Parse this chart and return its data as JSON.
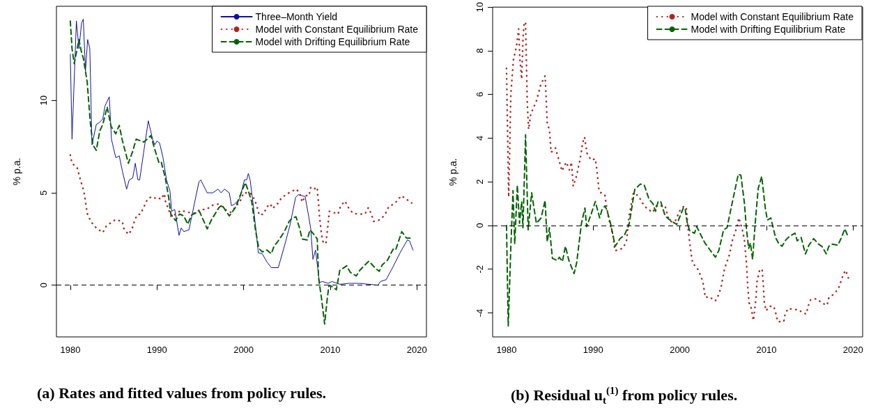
{
  "chart_data": [
    {
      "type": "line",
      "title": "(a) Rates and fitted values from policy rules.",
      "ylabel": "% p.a.",
      "xlim": [
        1978.4,
        2021.1
      ],
      "xticks": [
        1980,
        1990,
        2000,
        2010,
        2020
      ],
      "ylim": [
        -2.8,
        15.1
      ],
      "yticks": [
        0,
        5,
        10
      ],
      "grid": false,
      "legend": "top right",
      "marker": "none",
      "ref_lines": [
        {
          "axis": "y",
          "value": 0,
          "label": null,
          "line_style": "dashed",
          "color": "#000000"
        }
      ],
      "series": [
        {
          "name": "Three–Month Yield",
          "color": "#1010a0",
          "line_style": "solid",
          "x": [
            1980.0,
            1980.2,
            1980.7,
            1981.0,
            1981.3,
            1981.5,
            1981.75,
            1982.0,
            1982.25,
            1982.5,
            1983.0,
            1983.35,
            1983.75,
            1984.0,
            1984.5,
            1984.75,
            1985.25,
            1985.65,
            1986.0,
            1986.5,
            1986.8,
            1987.2,
            1987.5,
            1987.8,
            1988.0,
            1988.5,
            1989.0,
            1989.5,
            1989.75,
            1990.0,
            1990.3,
            1990.7,
            1991.1,
            1991.5,
            1991.7,
            1992.05,
            1992.55,
            1992.8,
            1993.1,
            1993.7,
            1994.4,
            1994.85,
            1995.05,
            1995.8,
            1996.45,
            1997.05,
            1997.4,
            1997.8,
            1998.35,
            1998.6,
            1999.0,
            1999.55,
            2000.1,
            2000.35,
            2000.55,
            2000.75,
            2001.1,
            2001.7,
            2002.15,
            2002.7,
            2003.2,
            2004.0,
            2004.7,
            2005.35,
            2006.0,
            2006.3,
            2007.1,
            2007.5,
            2007.75,
            2008.0,
            2008.3,
            2008.75,
            2009.1,
            2009.75,
            2010.2,
            2011.1,
            2012.2,
            2013.4,
            2014.45,
            2015.5,
            2015.8,
            2016.45,
            2017.25,
            2018.05,
            2018.9,
            2019.15,
            2019.55
          ],
          "values": [
            12.5,
            7.9,
            14.3,
            12.8,
            14.2,
            14.4,
            11.6,
            13.3,
            12.8,
            7.6,
            8.7,
            8.8,
            9.0,
            9.7,
            10.2,
            7.9,
            6.9,
            7.0,
            6.2,
            5.2,
            5.7,
            5.8,
            6.6,
            5.7,
            5.7,
            7.3,
            8.9,
            7.9,
            7.6,
            7.8,
            7.7,
            6.9,
            5.7,
            5.1,
            4.0,
            4.1,
            2.7,
            3.1,
            2.9,
            3.0,
            4.6,
            5.6,
            5.7,
            5.0,
            5.0,
            5.2,
            5.0,
            5.2,
            5.0,
            4.3,
            4.4,
            4.7,
            5.7,
            5.7,
            6.05,
            5.7,
            4.4,
            1.75,
            1.7,
            1.25,
            0.95,
            0.95,
            2.1,
            3.25,
            4.75,
            4.9,
            4.8,
            3.75,
            3.05,
            1.4,
            1.9,
            0.15,
            0.2,
            0.1,
            0.2,
            0.05,
            0.1,
            0.1,
            0.05,
            0.0,
            0.2,
            0.3,
            1.0,
            1.75,
            2.45,
            2.4,
            1.9
          ]
        },
        {
          "name": "Model with Constant Equilibrium Rate",
          "color": "#b22222",
          "line_style": "dotted",
          "x": [
            1980.0,
            1980.2,
            1980.8,
            1981.05,
            1981.3,
            1981.55,
            1981.7,
            1981.85,
            1982.0,
            1982.45,
            1983.0,
            1983.75,
            1984.15,
            1984.75,
            1985.2,
            1986.0,
            1986.2,
            1986.7,
            1987.1,
            1987.35,
            1987.7,
            1988.1,
            1988.5,
            1988.9,
            1989.4,
            1989.85,
            1990.1,
            1990.45,
            1990.85,
            1991.0,
            1991.35,
            1991.65,
            1992.0,
            1992.75,
            1993.55,
            1994.3,
            1995.0,
            1995.7,
            1996.5,
            1997.2,
            1997.85,
            1998.5,
            1999.1,
            1999.65,
            2000.0,
            2000.75,
            2001.25,
            2001.55,
            2001.8,
            2002.3,
            2002.7,
            2003.1,
            2003.35,
            2004.0,
            2004.4,
            2005.4,
            2006.1,
            2006.5,
            2006.75,
            2007.15,
            2007.55,
            2007.75,
            2008.1,
            2008.5,
            2008.55,
            2008.65,
            2008.7,
            2008.8,
            2008.9,
            2009.0,
            2009.2,
            2009.5,
            2009.6,
            2009.7,
            2009.8,
            2009.9,
            2010.3,
            2010.9,
            2011.2,
            2011.7,
            2012.1,
            2012.6,
            2013.2,
            2014.0,
            2014.4,
            2014.75,
            2015.0,
            2015.8,
            2016.35,
            2016.75,
            2017.15,
            2017.7,
            2018.2,
            2018.8,
            2019.4
          ],
          "values": [
            7.05,
            6.6,
            6.35,
            5.9,
            5.5,
            5.1,
            4.7,
            4.2,
            3.8,
            3.4,
            3.1,
            2.85,
            3.2,
            3.4,
            3.55,
            3.45,
            3.05,
            2.75,
            3.0,
            3.4,
            3.8,
            3.85,
            4.25,
            4.65,
            4.8,
            4.7,
            4.75,
            4.65,
            4.95,
            4.5,
            4.1,
            3.7,
            3.8,
            4.05,
            3.95,
            3.9,
            4.1,
            4.1,
            4.35,
            4.4,
            4.1,
            3.95,
            4.25,
            4.6,
            5.0,
            5.0,
            4.65,
            4.25,
            3.8,
            3.85,
            4.25,
            4.4,
            4.15,
            4.45,
            4.75,
            5.05,
            5.2,
            4.95,
            4.5,
            4.85,
            4.85,
            5.3,
            5.2,
            5.3,
            4.9,
            4.45,
            4.0,
            3.55,
            3.15,
            2.7,
            2.3,
            2.25,
            2.7,
            3.1,
            3.55,
            4.0,
            3.95,
            3.85,
            4.3,
            4.55,
            4.2,
            3.9,
            3.85,
            3.85,
            4.2,
            3.85,
            3.45,
            3.55,
            3.85,
            4.25,
            4.35,
            4.55,
            4.85,
            4.65,
            4.45
          ]
        },
        {
          "name": "Model with Drifting Equilibrium Rate",
          "color": "#006400",
          "line_style": "dashed",
          "x": [
            1980.0,
            1980.2,
            1980.45,
            1981.0,
            1981.25,
            1981.5,
            1981.95,
            1982.3,
            1982.6,
            1983.0,
            1983.4,
            1983.75,
            1984.25,
            1984.7,
            1985.25,
            1985.65,
            1986.0,
            1986.7,
            1987.2,
            1987.6,
            1988.5,
            1989.3,
            1989.75,
            1990.25,
            1990.5,
            1990.95,
            1991.35,
            1991.6,
            1992.15,
            1992.6,
            1993.1,
            1993.55,
            1994.0,
            1994.9,
            1995.8,
            1996.3,
            1997.15,
            1997.5,
            1997.9,
            1998.35,
            1999.05,
            1999.4,
            1999.8,
            2000.2,
            2000.55,
            2000.95,
            2001.35,
            2001.75,
            2002.15,
            2002.7,
            2003.2,
            2003.5,
            2004.0,
            2004.7,
            2005.25,
            2005.65,
            2006.05,
            2006.45,
            2006.75,
            2007.35,
            2007.65,
            2008.2,
            2008.5,
            2008.65,
            2009.0,
            2009.35,
            2009.65,
            2009.85,
            2010.3,
            2010.7,
            2011.1,
            2011.9,
            2012.3,
            2013.0,
            2013.4,
            2013.9,
            2014.45,
            2015.25,
            2015.65,
            2016.0,
            2016.6,
            2017.25,
            2017.55,
            2018.25,
            2018.8,
            2019.4
          ],
          "values": [
            14.3,
            12.8,
            12.0,
            13.3,
            12.7,
            12.3,
            11.0,
            8.85,
            7.6,
            7.3,
            8.35,
            8.7,
            9.65,
            8.6,
            8.2,
            8.65,
            7.85,
            6.6,
            7.25,
            7.9,
            7.75,
            8.1,
            7.35,
            6.6,
            6.65,
            5.85,
            4.75,
            3.85,
            3.5,
            3.85,
            3.75,
            3.3,
            3.8,
            4.0,
            3.05,
            3.55,
            4.2,
            4.35,
            4.05,
            3.75,
            4.2,
            4.6,
            5.1,
            5.55,
            5.1,
            4.5,
            3.05,
            2.0,
            1.8,
            1.9,
            1.7,
            2.1,
            2.4,
            2.9,
            3.45,
            3.65,
            3.7,
            3.1,
            2.5,
            2.45,
            3.0,
            2.7,
            2.5,
            0.4,
            -0.75,
            -2.1,
            -0.75,
            0.0,
            -0.1,
            -0.25,
            0.8,
            1.05,
            0.7,
            0.5,
            0.8,
            1.05,
            1.3,
            0.9,
            0.75,
            1.1,
            1.35,
            1.95,
            1.9,
            2.9,
            2.55,
            2.55
          ]
        }
      ]
    },
    {
      "type": "line",
      "title": "(b) Residual u$_{t}$$^{(1)}$ from policy rules.",
      "ylabel": "% p.a.",
      "xlim": [
        1978.4,
        2021.1
      ],
      "xticks": [
        1980,
        1990,
        2000,
        2010,
        2020
      ],
      "ylim": [
        -5.1,
        10.0
      ],
      "yticks": [
        -4,
        -2,
        0,
        2,
        4,
        6,
        8,
        10
      ],
      "grid": false,
      "legend": "top right",
      "marker": "none",
      "ref_lines": [
        {
          "axis": "y",
          "value": 0,
          "label": null,
          "line_style": "dashed",
          "color": "#000000"
        }
      ],
      "series": [
        {
          "name": "Model with Constant Equilibrium Rate",
          "color": "#b22222",
          "line_style": "dotted",
          "x": [
            1980.0,
            1980.25,
            1980.5,
            1980.8,
            1981.15,
            1981.4,
            1981.55,
            1981.75,
            1981.9,
            1982.05,
            1982.2,
            1982.3,
            1982.4,
            1982.55,
            1982.8,
            1983.45,
            1983.95,
            1984.45,
            1984.55,
            1984.7,
            1984.95,
            1985.15,
            1985.65,
            1986.05,
            1986.4,
            1986.9,
            1987.25,
            1987.5,
            1987.7,
            1988.1,
            1988.5,
            1988.8,
            1989.0,
            1989.3,
            1989.75,
            1990.25,
            1990.4,
            1990.6,
            1990.7,
            1991.35,
            1991.5,
            1991.8,
            1992.3,
            1992.5,
            1993.1,
            1993.5,
            1993.85,
            1994.15,
            1994.65,
            1995.25,
            1995.65,
            1996.15,
            1996.85,
            1997.3,
            1998.3,
            1998.7,
            1999.1,
            1999.55,
            1999.95,
            2000.5,
            2000.75,
            2000.9,
            2001.1,
            2001.35,
            2001.5,
            2001.95,
            2002.3,
            2002.65,
            2002.95,
            2003.35,
            2004.1,
            2004.45,
            2004.75,
            2005.1,
            2005.35,
            2005.65,
            2005.85,
            2006.05,
            2006.35,
            2006.6,
            2006.8,
            2007.05,
            2007.25,
            2007.45,
            2007.7,
            2007.85,
            2008.0,
            2008.15,
            2008.5,
            2008.8,
            2008.9,
            2009.2,
            2009.5,
            2009.65,
            2009.75,
            2009.95,
            2010.35,
            2010.85,
            2011.1,
            2011.3,
            2012.0,
            2012.15,
            2012.5,
            2013.3,
            2013.7,
            2014.2,
            2014.6,
            2014.8,
            2015.1,
            2015.8,
            2016.4,
            2017.0,
            2017.2,
            2017.75,
            2018.3,
            2018.6,
            2018.9,
            2019.15,
            2019.45
          ],
          "values": [
            7.2,
            1.3,
            6.0,
            7.6,
            8.2,
            9.0,
            7.6,
            6.7,
            8.55,
            9.3,
            9.3,
            7.45,
            5.6,
            4.4,
            5.1,
            5.7,
            6.45,
            6.85,
            6.1,
            4.65,
            4.4,
            3.35,
            3.55,
            3.0,
            2.5,
            2.9,
            2.55,
            2.9,
            1.8,
            2.3,
            3.05,
            3.8,
            4.05,
            3.3,
            3.0,
            3.05,
            2.65,
            1.9,
            1.55,
            1.4,
            1.0,
            0.3,
            -0.45,
            -1.15,
            -1.1,
            -1.0,
            -0.7,
            0.45,
            1.5,
            1.35,
            1.05,
            0.8,
            0.6,
            0.9,
            0.9,
            0.3,
            0.15,
            0.25,
            0.65,
            0.9,
            0.8,
            0.1,
            -0.65,
            -1.4,
            -1.75,
            -1.9,
            -2.2,
            -2.55,
            -3.3,
            -3.25,
            -3.45,
            -3.2,
            -2.85,
            -2.1,
            -1.75,
            -1.45,
            -1.1,
            -0.7,
            -0.35,
            -0.05,
            0.35,
            0.05,
            -0.25,
            -0.65,
            -1.75,
            -2.85,
            -3.55,
            -3.6,
            -4.35,
            -3.3,
            -2.6,
            -2.05,
            -2.0,
            -2.8,
            -3.5,
            -3.9,
            -3.7,
            -3.7,
            -4.05,
            -4.4,
            -4.4,
            -4.05,
            -3.8,
            -3.85,
            -3.85,
            -4.0,
            -4.05,
            -3.7,
            -3.4,
            -3.35,
            -3.55,
            -3.65,
            -3.3,
            -3.15,
            -2.9,
            -2.55,
            -2.2,
            -2.05,
            -2.4
          ]
        },
        {
          "name": "Model with Drifting Equilibrium Rate",
          "color": "#006400",
          "line_style": "dashed",
          "x": [
            1980.0,
            1980.2,
            1980.5,
            1980.75,
            1980.95,
            1981.25,
            1981.5,
            1981.75,
            1981.9,
            1982.2,
            1982.5,
            1982.9,
            1983.45,
            1984.0,
            1984.45,
            1984.7,
            1984.95,
            1985.3,
            1985.85,
            1986.1,
            1986.45,
            1986.8,
            1987.2,
            1987.8,
            1988.1,
            1988.65,
            1989.05,
            1989.25,
            1989.75,
            1990.25,
            1990.75,
            1991.0,
            1991.35,
            1991.6,
            1992.0,
            1992.55,
            1993.1,
            1993.6,
            1994.15,
            1994.8,
            1995.45,
            1995.9,
            1996.45,
            1996.9,
            1997.2,
            1997.5,
            1997.8,
            1998.3,
            1998.7,
            1999.25,
            1999.65,
            2000.05,
            2000.4,
            2000.6,
            2000.85,
            2001.15,
            2001.7,
            2001.95,
            2002.45,
            2002.9,
            2003.45,
            2004.1,
            2004.5,
            2005.05,
            2005.45,
            2006.0,
            2006.35,
            2006.75,
            2007.05,
            2007.45,
            2007.7,
            2007.95,
            2008.15,
            2008.4,
            2008.7,
            2009.05,
            2009.45,
            2009.85,
            2010.1,
            2010.5,
            2011.05,
            2011.45,
            2011.8,
            2012.25,
            2012.65,
            2013.3,
            2013.55,
            2014.0,
            2014.5,
            2014.9,
            2015.45,
            2016.0,
            2016.4,
            2016.9,
            2017.2,
            2017.6,
            2018.25,
            2018.65,
            2019.05,
            2019.4
          ],
          "values": [
            0.0,
            -4.6,
            -1.0,
            1.6,
            -0.85,
            1.85,
            0.1,
            1.1,
            -0.1,
            4.15,
            -0.2,
            1.5,
            0.1,
            0.35,
            1.15,
            -0.75,
            -0.1,
            -1.5,
            -1.6,
            -1.45,
            -1.65,
            -0.95,
            -1.6,
            -2.2,
            -1.7,
            0.1,
            0.8,
            -0.05,
            0.5,
            1.1,
            0.35,
            0.7,
            0.9,
            0.7,
            0.1,
            -0.95,
            -0.6,
            -0.45,
            0.05,
            1.65,
            1.9,
            1.85,
            1.2,
            1.0,
            0.65,
            1.1,
            1.1,
            0.45,
            0.3,
            0.15,
            0.05,
            0.45,
            0.8,
            0.8,
            0.15,
            -0.25,
            -0.35,
            -0.05,
            -0.45,
            -0.8,
            -1.1,
            -1.45,
            -1.15,
            -0.2,
            -0.1,
            0.95,
            1.6,
            2.35,
            2.3,
            1.05,
            -0.2,
            -1.05,
            -0.8,
            -1.55,
            0.1,
            1.7,
            2.25,
            0.85,
            0.25,
            0.35,
            -0.55,
            -0.85,
            -0.95,
            -0.65,
            -0.5,
            -0.35,
            -0.7,
            -0.55,
            -1.3,
            -0.9,
            -0.6,
            -0.85,
            -0.95,
            -1.3,
            -0.95,
            -0.85,
            -0.9,
            -0.55,
            -0.15,
            -0.5
          ]
        }
      ]
    }
  ]
}
